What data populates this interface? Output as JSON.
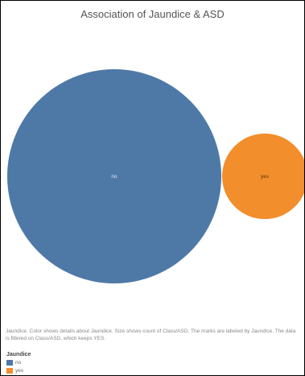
{
  "chart_data": {
    "type": "bubble",
    "title": "Association of Jaundice & ASD",
    "measure": "count of Class/ASD",
    "categories": [
      "no",
      "yes"
    ],
    "values": [
      163,
      26
    ],
    "colors": [
      "#4e79a7",
      "#f28e2b"
    ],
    "legend": {
      "title": "Jaundice",
      "placement": "bottom-left",
      "items": [
        {
          "label": "no",
          "color": "#4e79a7"
        },
        {
          "label": "yes",
          "color": "#f28e2b"
        }
      ]
    }
  },
  "caption": "Jaundice.  Color shows details about Jaundice.  Size shows count of Class/ASD.  The marks are labeled by Jaundice. The data is filtered on Class/ASD, which keeps YES."
}
